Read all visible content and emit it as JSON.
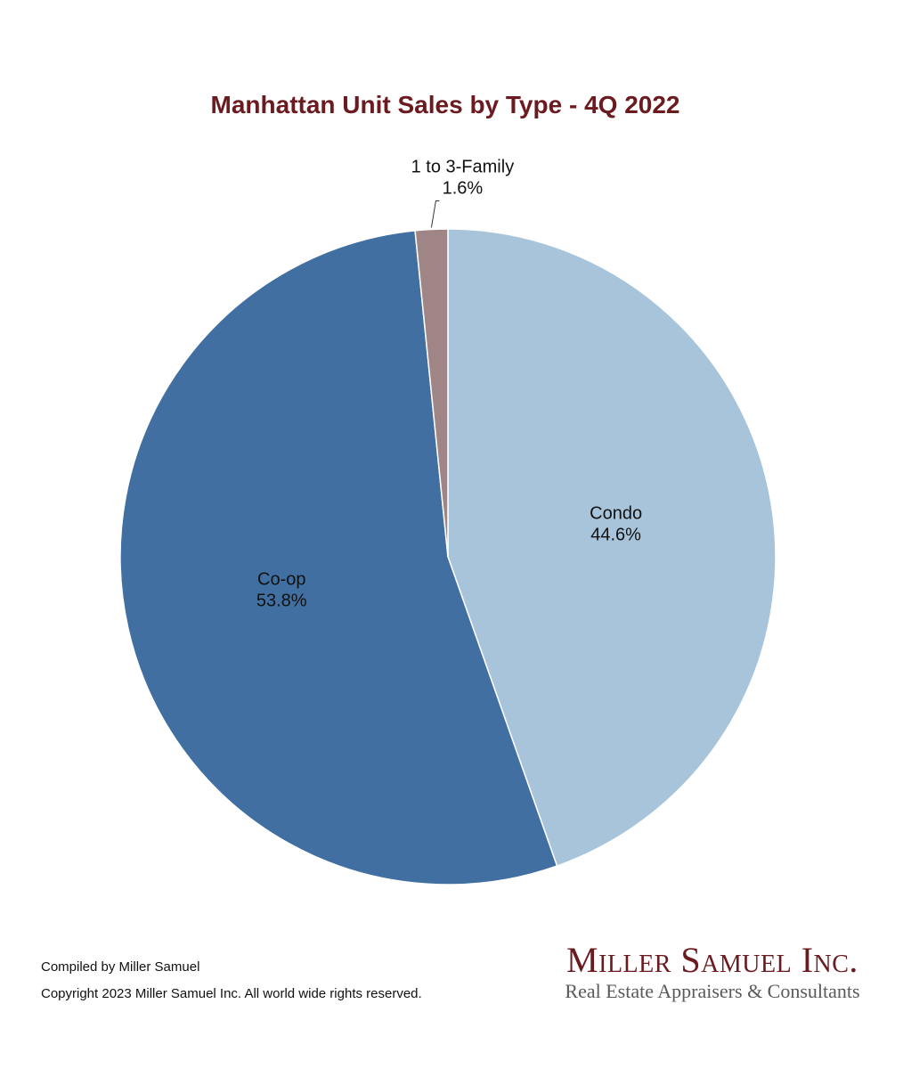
{
  "chart_data": {
    "type": "pie",
    "title": "Manhattan Unit Sales by Type - 4Q 2022",
    "slices": [
      {
        "name": "Condo",
        "value": 44.6,
        "label": "44.6%",
        "color": "#a8c4da"
      },
      {
        "name": "Co-op",
        "value": 53.8,
        "label": "53.8%",
        "color": "#416fa1"
      },
      {
        "name": "1 to 3-Family",
        "value": 1.6,
        "label": "1.6%",
        "color": "#a08586"
      }
    ],
    "start_angle": "12 o'clock",
    "direction": "clockwise"
  },
  "footer": {
    "compiled": "Compiled by Miller Samuel",
    "copyright": "Copyright 2023 Miller Samuel Inc.  All world wide rights reserved."
  },
  "brand": {
    "name": "Miller Samuel Inc.",
    "tagline": "Real Estate Appraisers & Consultants"
  }
}
